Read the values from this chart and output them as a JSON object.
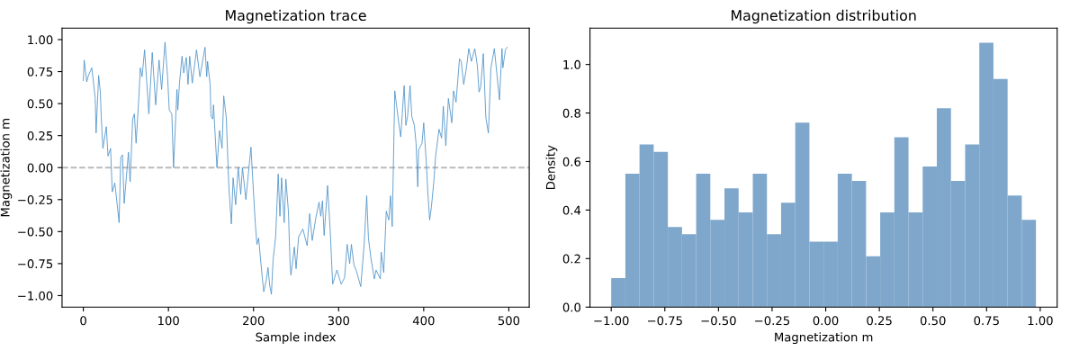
{
  "chart_data": [
    {
      "type": "line",
      "title": "Magnetization trace",
      "xlabel": "Sample index",
      "ylabel": "Magnetization m",
      "xlim": [
        -25,
        524
      ],
      "xticks": [
        0,
        100,
        200,
        300,
        400,
        500
      ],
      "ylim": [
        -1.09,
        1.09
      ],
      "yticks": [
        {
          "value": -1.0,
          "label": "−1.00"
        },
        {
          "value": -0.75,
          "label": "−0.75"
        },
        {
          "value": -0.5,
          "label": "−0.50"
        },
        {
          "value": -0.25,
          "label": "−0.25"
        },
        {
          "value": 0,
          "label": "0.00"
        },
        {
          "value": 0.25,
          "label": "0.25"
        },
        {
          "value": 0.5,
          "label": "0.50"
        },
        {
          "value": 0.75,
          "label": "0.75"
        },
        {
          "value": 1.0,
          "label": "1.00"
        }
      ],
      "grid": false,
      "line_style": "solid",
      "marker": "none",
      "ref_lines": [
        {
          "axis": "y",
          "value": 0,
          "color": "#bbbbbb",
          "line_style": "dashed"
        }
      ],
      "x": [
        0,
        1,
        4,
        6,
        10,
        14,
        15,
        18,
        20,
        21,
        23,
        27,
        29,
        32,
        34,
        37,
        40,
        42,
        44,
        46,
        48,
        53,
        55,
        58,
        60,
        62,
        65,
        67,
        69,
        72,
        77,
        81,
        85,
        89,
        92,
        96,
        99,
        101,
        104,
        106,
        110,
        111,
        113,
        116,
        118,
        121,
        123,
        125,
        128,
        133,
        137,
        143,
        145,
        146,
        149,
        150,
        152,
        153,
        157,
        160,
        163,
        165,
        168,
        171,
        174,
        176,
        179,
        182,
        185,
        187,
        191,
        197,
        199,
        202,
        204,
        206,
        210,
        212,
        215,
        217,
        219,
        221,
        223,
        226,
        229,
        231,
        233,
        236,
        238,
        241,
        243,
        244,
        248,
        250,
        253,
        258,
        263,
        266,
        269,
        273,
        277,
        279,
        281,
        283,
        287,
        290,
        293,
        298,
        303,
        307,
        310,
        313,
        315,
        318,
        321,
        326,
        330,
        333,
        335,
        338,
        342,
        344,
        349,
        350,
        353,
        356,
        359,
        361,
        363,
        366,
        368,
        371,
        373,
        377,
        379,
        381,
        384,
        386,
        389,
        391,
        393,
        394,
        398,
        400,
        403,
        405,
        407,
        409,
        412,
        414,
        418,
        421,
        423,
        426,
        429,
        433,
        435,
        438,
        442,
        444,
        447,
        450,
        453,
        456,
        460,
        463,
        465,
        467,
        470,
        473,
        476,
        479,
        483,
        486,
        489,
        492,
        493,
        496,
        498
      ],
      "series": [
        {
          "color": "#4a90c8",
          "values": [
            0.68,
            0.84,
            0.67,
            0.72,
            0.78,
            0.54,
            0.27,
            0.72,
            0.59,
            0.4,
            0.15,
            0.32,
            0.09,
            0.15,
            -0.19,
            -0.12,
            -0.3,
            -0.43,
            0.08,
            0.1,
            -0.28,
            0.12,
            -0.11,
            0.38,
            0.42,
            0.19,
            0.52,
            0.78,
            0.71,
            0.92,
            0.42,
            0.9,
            0.49,
            0.84,
            0.61,
            0.98,
            0.71,
            0.45,
            0.42,
            0.0,
            0.61,
            0.45,
            0.66,
            0.87,
            0.74,
            0.86,
            0.65,
            0.87,
            0.66,
            0.92,
            0.71,
            0.94,
            0.71,
            0.83,
            0.65,
            0.4,
            0.38,
            0.49,
            0.0,
            0.29,
            0.15,
            0.56,
            0.39,
            -0.15,
            -0.44,
            -0.08,
            -0.29,
            0.0,
            -0.21,
            0.0,
            -0.25,
            0.16,
            -0.08,
            -0.43,
            -0.6,
            -0.55,
            -0.84,
            -0.97,
            -0.88,
            -0.78,
            -0.92,
            -0.99,
            -0.72,
            -0.54,
            -0.05,
            -0.38,
            -0.08,
            -0.43,
            -0.09,
            -0.34,
            -0.76,
            -0.84,
            -0.62,
            -0.79,
            -0.54,
            -0.48,
            -0.61,
            -0.36,
            -0.57,
            -0.4,
            -0.27,
            -0.38,
            -0.26,
            -0.53,
            -0.14,
            -0.48,
            -0.91,
            -0.8,
            -0.91,
            -0.86,
            -0.6,
            -0.75,
            -0.6,
            -0.76,
            -0.81,
            -0.93,
            -0.6,
            -0.22,
            -0.55,
            -0.71,
            -0.87,
            -0.8,
            -0.87,
            -0.66,
            -0.82,
            -0.34,
            -0.41,
            -0.22,
            -0.46,
            0.6,
            0.49,
            0.33,
            0.24,
            0.64,
            0.33,
            0.4,
            0.64,
            0.4,
            0.33,
            0.19,
            -0.15,
            0.14,
            0.19,
            0.35,
            0.04,
            -0.21,
            -0.41,
            -0.31,
            -0.1,
            0.09,
            0.3,
            0.23,
            0.48,
            0.17,
            0.54,
            0.35,
            0.6,
            0.51,
            0.85,
            0.83,
            0.65,
            0.77,
            0.93,
            0.83,
            0.93,
            0.8,
            0.59,
            0.63,
            0.89,
            0.39,
            0.27,
            0.78,
            0.93,
            0.73,
            0.53,
            0.93,
            0.78,
            0.92,
            0.94
          ]
        }
      ]
    },
    {
      "type": "histogram",
      "title": "Magnetization distribution",
      "xlabel": "Magnetization m",
      "ylabel": "Density",
      "color": "#7ea7cb",
      "grid": false,
      "xlim": [
        -1.099,
        1.079
      ],
      "xticks": [
        {
          "value": -1.0,
          "label": "−1.00"
        },
        {
          "value": -0.75,
          "label": "−0.75"
        },
        {
          "value": -0.5,
          "label": "−0.50"
        },
        {
          "value": -0.25,
          "label": "−0.25"
        },
        {
          "value": 0,
          "label": "0.00"
        },
        {
          "value": 0.25,
          "label": "0.25"
        },
        {
          "value": 0.5,
          "label": "0.50"
        },
        {
          "value": 0.75,
          "label": "0.75"
        },
        {
          "value": 1.0,
          "label": "1.00"
        }
      ],
      "ylim": [
        0,
        1.15
      ],
      "yticks": [
        {
          "value": 0,
          "label": "0.0"
        },
        {
          "value": 0.2,
          "label": "0.2"
        },
        {
          "value": 0.4,
          "label": "0.4"
        },
        {
          "value": 0.6,
          "label": "0.6"
        },
        {
          "value": 0.8,
          "label": "0.8"
        },
        {
          "value": 1.0,
          "label": "1.0"
        }
      ],
      "bins": [
        -1.0,
        -0.934,
        -0.868,
        -0.802,
        -0.736,
        -0.67,
        -0.604,
        -0.538,
        -0.472,
        -0.406,
        -0.34,
        -0.274,
        -0.208,
        -0.142,
        -0.076,
        -0.01,
        0.056,
        0.122,
        0.188,
        0.254,
        0.32,
        0.386,
        0.452,
        0.518,
        0.584,
        0.65,
        0.716,
        0.782,
        0.848,
        0.914,
        0.98
      ],
      "values": [
        0.12,
        0.55,
        0.67,
        0.64,
        0.33,
        0.3,
        0.55,
        0.36,
        0.49,
        0.39,
        0.55,
        0.3,
        0.43,
        0.76,
        0.27,
        0.27,
        0.55,
        0.52,
        0.21,
        0.39,
        0.7,
        0.39,
        0.58,
        0.82,
        0.52,
        0.67,
        1.09,
        0.94,
        0.46,
        0.36
      ]
    }
  ]
}
